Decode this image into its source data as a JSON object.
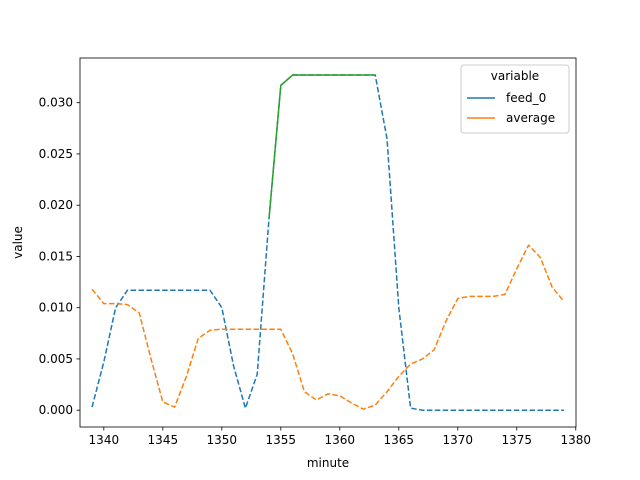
{
  "chart_data": {
    "type": "line",
    "title": "",
    "xlabel": "minute",
    "ylabel": "value",
    "xlim": [
      1337.98,
      1380.02
    ],
    "ylim": [
      -0.00164,
      0.03436
    ],
    "xticks": [
      1340,
      1345,
      1350,
      1355,
      1360,
      1365,
      1370,
      1375,
      1380
    ],
    "xtick_labels": [
      "1340",
      "1345",
      "1350",
      "1355",
      "1360",
      "1365",
      "1370",
      "1375",
      "1380"
    ],
    "yticks": [
      0,
      0.005,
      0.01,
      0.015,
      0.02,
      0.025,
      0.03
    ],
    "ytick_labels": [
      "0.000",
      "0.005",
      "0.010",
      "0.015",
      "0.020",
      "0.025",
      "0.030"
    ],
    "grid": false,
    "legend": {
      "title": "variable",
      "placement": "upper right",
      "entries": [
        {
          "label": "feed_0",
          "color": "#1f77b4"
        },
        {
          "label": "average",
          "color": "#ff7f0e"
        }
      ]
    },
    "series": [
      {
        "name": "feed_0",
        "color": "#1f77b4",
        "style": "dashed",
        "x": [
          1339,
          1340,
          1341,
          1342,
          1343,
          1344,
          1345,
          1346,
          1347,
          1348,
          1349,
          1350,
          1351,
          1352,
          1353,
          1354,
          1355,
          1356,
          1357,
          1358,
          1359,
          1360,
          1361,
          1362,
          1363,
          1364,
          1365,
          1366,
          1367,
          1368,
          1369,
          1370,
          1371,
          1372,
          1373,
          1374,
          1375,
          1376,
          1377,
          1378,
          1379
        ],
        "y": [
          0.0003,
          0.0047,
          0.01,
          0.0117,
          0.0117,
          0.0117,
          0.0117,
          0.0117,
          0.0117,
          0.0117,
          0.0117,
          0.01,
          0.0043,
          0.0002,
          0.0035,
          0.0187,
          0.0317,
          0.0327,
          0.0327,
          0.0327,
          0.0327,
          0.0327,
          0.0327,
          0.0327,
          0.0327,
          0.0265,
          0.01,
          0.0002,
          0,
          0,
          0,
          0,
          0,
          0,
          0,
          0,
          0,
          0,
          0,
          0,
          0
        ]
      },
      {
        "name": "average",
        "color": "#ff7f0e",
        "style": "dashed",
        "x": [
          1339,
          1340,
          1341,
          1342,
          1343,
          1344,
          1345,
          1346,
          1347,
          1348,
          1349,
          1350,
          1351,
          1352,
          1353,
          1354,
          1355,
          1356,
          1357,
          1358,
          1359,
          1360,
          1361,
          1362,
          1363,
          1364,
          1365,
          1366,
          1367,
          1368,
          1369,
          1370,
          1371,
          1372,
          1373,
          1374,
          1375,
          1376,
          1377,
          1378,
          1379
        ],
        "y": [
          0.0118,
          0.0104,
          0.0104,
          0.0103,
          0.0095,
          0.005,
          0.0008,
          0.0003,
          0.0033,
          0.007,
          0.0078,
          0.0079,
          0.0079,
          0.0079,
          0.0079,
          0.0079,
          0.0079,
          0.0055,
          0.0018,
          0.001,
          0.0016,
          0.0014,
          0.0007,
          0.0001,
          0.0005,
          0.0018,
          0.0033,
          0.0045,
          0.005,
          0.0059,
          0.0087,
          0.0109,
          0.0111,
          0.0111,
          0.0111,
          0.0113,
          0.0138,
          0.0161,
          0.0149,
          0.012,
          0.0106
        ]
      },
      {
        "name": "",
        "color": "#2ca02c",
        "style": "solid",
        "x": [
          1354,
          1355,
          1356,
          1357,
          1358,
          1359,
          1360,
          1361,
          1362,
          1363
        ],
        "y": [
          0.0187,
          0.0317,
          0.0327,
          0.0327,
          0.0327,
          0.0327,
          0.0327,
          0.0327,
          0.0327,
          0.0327
        ]
      }
    ]
  }
}
